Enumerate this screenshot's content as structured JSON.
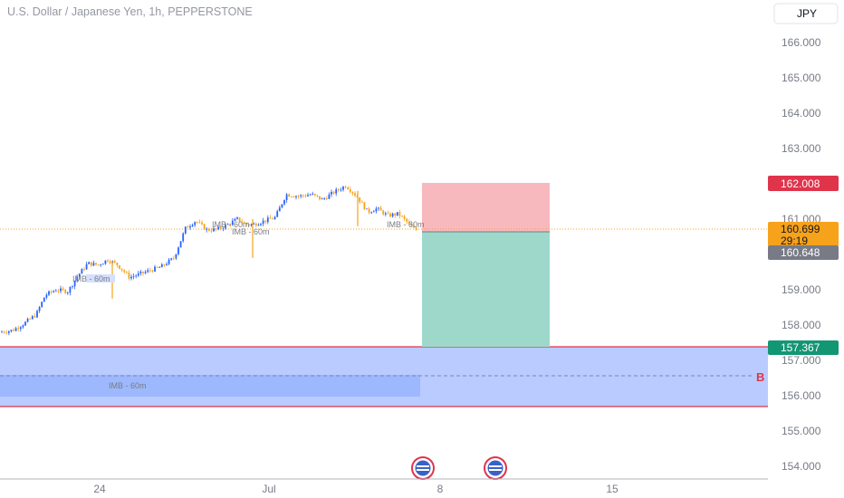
{
  "header": {
    "symbol_title": "U.S. Dollar / Japanese Yen, 1h, PEPPERSTONE"
  },
  "currency_button": {
    "label": "JPY"
  },
  "chart_data": {
    "type": "candlestick",
    "y_axis": {
      "ticks": [
        "166.000",
        "165.000",
        "164.000",
        "163.000",
        "161.000",
        "159.000",
        "158.000",
        "157.000",
        "156.000",
        "155.000",
        "154.000"
      ],
      "ylim": [
        153.7,
        166.8
      ]
    },
    "x_axis": {
      "ticks": [
        "24",
        "Jul",
        "8",
        "15"
      ]
    },
    "price_labels": {
      "stop_loss": "162.008",
      "current_price": "160.699",
      "countdown": "29:19",
      "entry": "160.648",
      "take_profit": "157.367"
    },
    "annotations": [
      "IMB - 60m",
      "IMB - 60m",
      "IMB - 60m",
      "IMB - 60m",
      "IMB - 60m"
    ],
    "zone_marker": "B",
    "path": [
      [
        0,
        157.8
      ],
      [
        14,
        157.85
      ],
      [
        27,
        158.05
      ],
      [
        40,
        158.3
      ],
      [
        50,
        158.85
      ],
      [
        62,
        159.0
      ],
      [
        75,
        158.95
      ],
      [
        86,
        159.4
      ],
      [
        97,
        159.75
      ],
      [
        108,
        159.7
      ],
      [
        119,
        159.85
      ],
      [
        130,
        159.7
      ],
      [
        143,
        159.35
      ],
      [
        155,
        159.45
      ],
      [
        166,
        159.55
      ],
      [
        178,
        159.65
      ],
      [
        192,
        159.9
      ],
      [
        205,
        160.75
      ],
      [
        216,
        160.95
      ],
      [
        228,
        160.7
      ],
      [
        240,
        160.7
      ],
      [
        252,
        160.85
      ],
      [
        262,
        161.0
      ],
      [
        272,
        160.85
      ],
      [
        280,
        160.85
      ],
      [
        292,
        160.95
      ],
      [
        304,
        161.05
      ],
      [
        316,
        161.7
      ],
      [
        330,
        161.65
      ],
      [
        344,
        161.7
      ],
      [
        356,
        161.55
      ],
      [
        368,
        161.75
      ],
      [
        382,
        161.95
      ],
      [
        394,
        161.65
      ],
      [
        406,
        161.2
      ],
      [
        416,
        161.3
      ],
      [
        428,
        161.1
      ],
      [
        440,
        161.15
      ],
      [
        448,
        160.95
      ],
      [
        458,
        160.7
      ]
    ],
    "colors": {
      "up": "#2962ff",
      "down": "#f7a21b"
    }
  }
}
